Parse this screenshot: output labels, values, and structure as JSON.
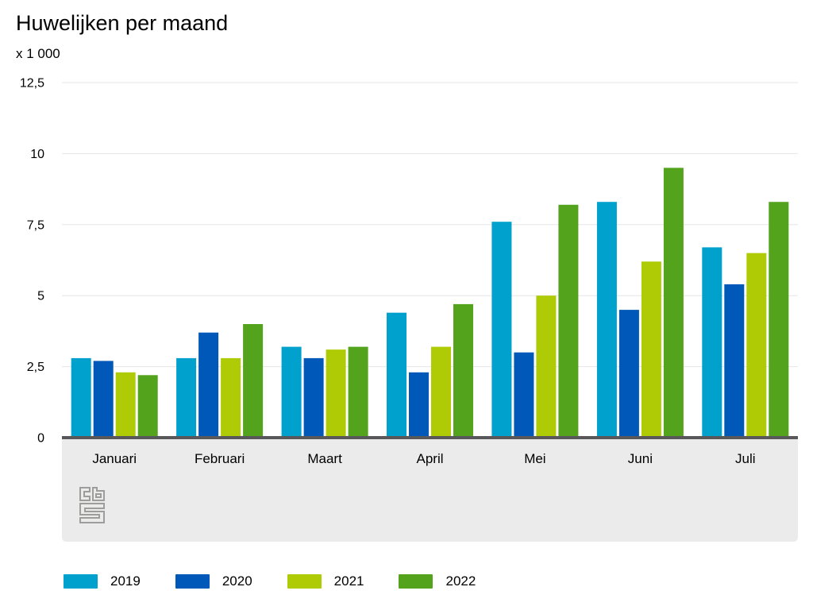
{
  "chart": {
    "title": "Huwelijken per maand",
    "unit": "x 1 000"
  },
  "branding": {
    "logo": "cbs-logo"
  },
  "chart_data": {
    "type": "bar",
    "title": "Huwelijken per maand",
    "ylabel": "x 1 000",
    "xlabel": "",
    "categories": [
      "Januari",
      "Februari",
      "Maart",
      "April",
      "Mei",
      "Juni",
      "Juli"
    ],
    "series": [
      {
        "name": "2019",
        "color": "#00a1cd",
        "values": [
          2.8,
          2.8,
          3.2,
          4.4,
          7.6,
          8.3,
          6.7
        ]
      },
      {
        "name": "2020",
        "color": "#0058b8",
        "values": [
          2.7,
          3.7,
          2.8,
          2.3,
          3.0,
          4.5,
          5.4
        ]
      },
      {
        "name": "2021",
        "color": "#afcb05",
        "values": [
          2.3,
          2.8,
          3.1,
          3.2,
          5.0,
          6.2,
          6.5
        ]
      },
      {
        "name": "2022",
        "color": "#53a31d",
        "values": [
          2.2,
          4.0,
          3.2,
          4.7,
          8.2,
          9.5,
          8.3
        ]
      }
    ],
    "ylim": [
      0,
      12.5
    ],
    "yticks": [
      "0",
      "2,5",
      "5",
      "7,5",
      "10",
      "12,5"
    ],
    "ytick_values": [
      0,
      2.5,
      5,
      7.5,
      10,
      12.5
    ],
    "grid": true,
    "legend_position": "bottom"
  },
  "colors": {
    "background": "#ffffff",
    "grid": "#e6e6e6",
    "axis": "#58585a",
    "band": "#ebebeb",
    "logo": "#9d9d9c",
    "text": "#000000"
  }
}
